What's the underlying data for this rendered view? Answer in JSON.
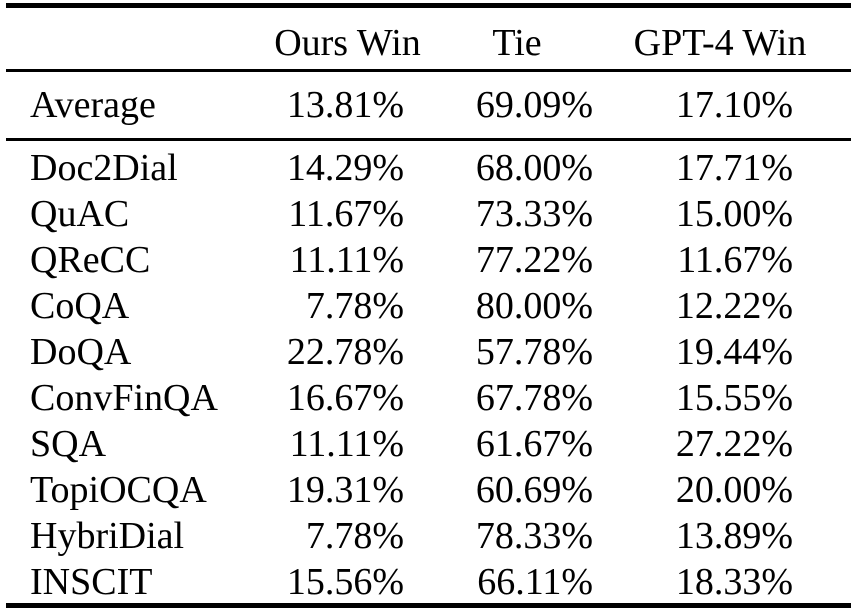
{
  "colors": {
    "background": "#ffffff",
    "text": "#000000",
    "rule": "#000000"
  },
  "chart_data": {
    "type": "table",
    "columns": [
      "",
      "Ours Win",
      "Tie",
      "GPT-4 Win"
    ],
    "summary_row_label": "Average",
    "rows": [
      [
        "Average",
        "13.81%",
        "69.09%",
        "17.10%"
      ],
      [
        "Doc2Dial",
        "14.29%",
        "68.00%",
        "17.71%"
      ],
      [
        "QuAC",
        "11.67%",
        "73.33%",
        "15.00%"
      ],
      [
        "QReCC",
        "11.11%",
        "77.22%",
        "11.67%"
      ],
      [
        "CoQA",
        "7.78%",
        "80.00%",
        "12.22%"
      ],
      [
        "DoQA",
        "22.78%",
        "57.78%",
        "19.44%"
      ],
      [
        "ConvFinQA",
        "16.67%",
        "67.78%",
        "15.55%"
      ],
      [
        "SQA",
        "11.11%",
        "61.67%",
        "27.22%"
      ],
      [
        "TopiOCQA",
        "19.31%",
        "60.69%",
        "20.00%"
      ],
      [
        "HybriDial",
        "7.78%",
        "78.33%",
        "13.89%"
      ],
      [
        "INSCIT",
        "15.56%",
        "66.11%",
        "18.33%"
      ]
    ],
    "layout": {
      "rules": [
        "thick-top",
        "thin-below-header",
        "thin-below-average",
        "thick-bottom"
      ],
      "label_column_align": "left",
      "value_columns_align": "right"
    }
  }
}
